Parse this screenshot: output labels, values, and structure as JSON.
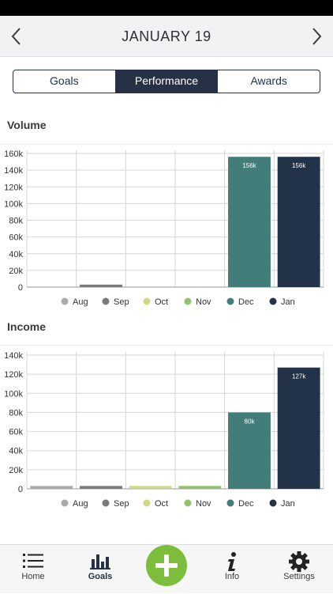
{
  "header": {
    "title": "JANUARY 19",
    "prev_icon": "chevron-left-icon",
    "next_icon": "chevron-right-icon"
  },
  "tabs": [
    {
      "label": "Goals",
      "active": false
    },
    {
      "label": "Performance",
      "active": true
    },
    {
      "label": "Awards",
      "active": false
    }
  ],
  "colors": {
    "accent": "#263146",
    "add_button": "#7cbd3c"
  },
  "volume": {
    "title": "Volume",
    "chart_data": {
      "type": "bar",
      "categories": [
        "Aug",
        "Sep",
        "Oct",
        "Nov",
        "Dec",
        "Jan"
      ],
      "values": [
        0,
        3,
        0,
        0,
        156,
        156
      ],
      "data_labels": [
        "",
        "",
        "",
        "",
        "156k",
        "156k"
      ],
      "colors": [
        "#aaaaaa",
        "#7a7a7a",
        "#cfd97f",
        "#93c26e",
        "#437d7a",
        "#223249"
      ],
      "y_ticks": [
        "0",
        "20k",
        "40k",
        "60k",
        "80k",
        "100k",
        "120k",
        "140k",
        "160k"
      ],
      "ylim": [
        0,
        160
      ],
      "grid": true,
      "legend": "bottom"
    }
  },
  "income": {
    "title": "Income",
    "chart_data": {
      "type": "bar",
      "categories": [
        "Aug",
        "Sep",
        "Oct",
        "Nov",
        "Dec",
        "Jan"
      ],
      "values": [
        3,
        3,
        3,
        3,
        80,
        127
      ],
      "data_labels": [
        "",
        "",
        "",
        "",
        "80k",
        "127k"
      ],
      "colors": [
        "#aaaaaa",
        "#7a7a7a",
        "#cfd97f",
        "#93c26e",
        "#437d7a",
        "#223249"
      ],
      "y_ticks": [
        "0",
        "20k",
        "40k",
        "60k",
        "80k",
        "100k",
        "120k",
        "140k"
      ],
      "ylim": [
        0,
        140
      ],
      "grid": true,
      "legend": "bottom"
    }
  },
  "tabbar": {
    "home_label": "Home",
    "goals_label": "Goals",
    "info_label": "Info",
    "settings_label": "Settings",
    "add_icon": "plus-icon"
  }
}
